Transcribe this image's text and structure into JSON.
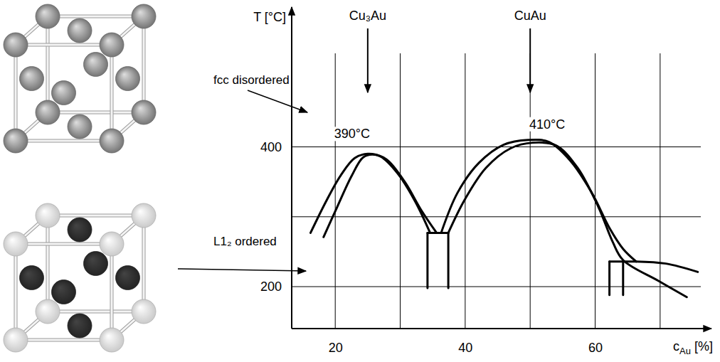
{
  "chart_data": {
    "type": "line",
    "color": "#000000",
    "ylabel": "T [°C]",
    "xlabel": "cAu [%]",
    "xlim": [
      13.3,
      77.9
    ],
    "ylim": [
      140,
      600
    ],
    "xticks": [
      20,
      40,
      60
    ],
    "yticks": [
      200,
      400
    ],
    "xgrid": [
      20,
      30,
      40,
      50,
      60,
      70
    ],
    "ygrid": [
      200,
      300,
      400
    ],
    "grid": true,
    "phases": [
      {
        "label": "Cu₃Au",
        "x": 25
      },
      {
        "label": "CuAu",
        "x": 50
      }
    ],
    "annotations": [
      {
        "text": "390°C",
        "x": 25,
        "y": 390
      },
      {
        "text": "410°C",
        "x": 50,
        "y": 410
      }
    ],
    "structures": [
      {
        "label": "fcc disordered",
        "colors": [
          "#8c8c8c",
          "#8c8c8c"
        ]
      },
      {
        "label": "L1₂ ordered",
        "colors": [
          "#f2f2f2",
          "#2b2b2b"
        ]
      }
    ],
    "series": [
      {
        "type": "curve",
        "x": [
          16.2,
          18.7,
          20.9,
          23.0,
          25.0,
          27.0,
          29.6,
          32.3,
          34.6
        ],
        "values": [
          277,
          324,
          360,
          384,
          390,
          386,
          362,
          322,
          277
        ]
      },
      {
        "type": "curve",
        "x": [
          18.2,
          20.3,
          22.5,
          24.3,
          25.8,
          27.9,
          30.7,
          33.2,
          35.6
        ],
        "values": [
          271,
          314,
          358,
          385,
          389,
          382,
          350,
          310,
          277
        ]
      },
      {
        "type": "curve",
        "x": [
          36.3,
          38.8,
          42.1,
          45.9,
          49.7,
          52.9,
          56.2,
          59.5,
          62.2,
          64.3,
          66.3
        ],
        "values": [
          277,
          334,
          377,
          403,
          410,
          407,
          380,
          334,
          284,
          254,
          236
        ]
      },
      {
        "type": "curve",
        "x": [
          37.4,
          39.9,
          43.2,
          47.0,
          50.4,
          54.0,
          57.3,
          60.5,
          62.7,
          64.3,
          69.8,
          74.1
        ],
        "values": [
          277,
          324,
          370,
          398,
          406,
          402,
          370,
          314,
          264,
          238,
          208,
          185
        ]
      },
      {
        "type": "curve",
        "x": [
          66.3,
          70.9,
          75.8
        ],
        "values": [
          236,
          233,
          221
        ]
      },
      {
        "type": "line",
        "x": [
          34.2,
          37.4
        ],
        "values": [
          277,
          277
        ]
      },
      {
        "type": "line",
        "x": [
          34.2,
          34.2
        ],
        "values": [
          277,
          198
        ]
      },
      {
        "type": "line",
        "x": [
          37.4,
          37.4
        ],
        "values": [
          277,
          198
        ]
      },
      {
        "type": "line",
        "x": [
          62.2,
          66.3
        ],
        "values": [
          236,
          236
        ]
      },
      {
        "type": "line",
        "x": [
          62.2,
          62.2
        ],
        "values": [
          236,
          188
        ]
      },
      {
        "type": "line",
        "x": [
          64.3,
          64.3
        ],
        "values": [
          236,
          188
        ]
      }
    ]
  }
}
